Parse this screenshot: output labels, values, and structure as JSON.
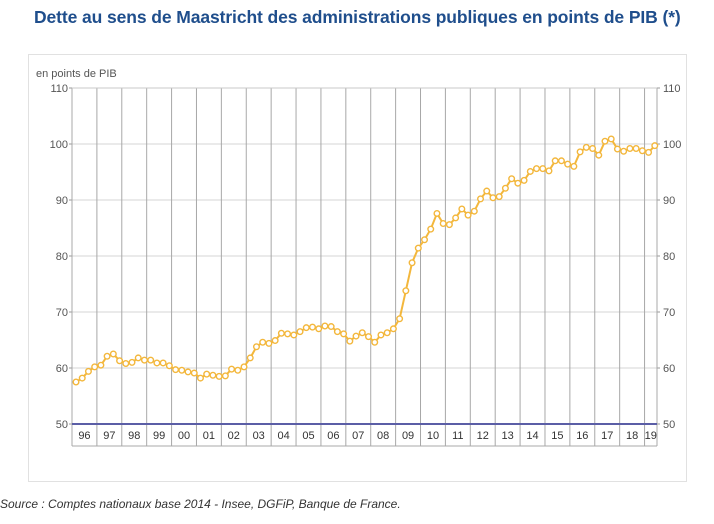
{
  "title": "Dette au sens de Maastricht des administrations publiques en points de PIB (*)",
  "source": "Source : Comptes nationaux base 2014 - Insee, DGFiP, Banque de France.",
  "colors": {
    "title": "#1f4e8c",
    "line": "#f3b73c",
    "baseline": "#5b5ea6",
    "grid": "#a8a8a8"
  },
  "chart_data": {
    "type": "line",
    "ylabel": "en points de PIB",
    "ylim": [
      50,
      110
    ],
    "yticks": [
      50,
      60,
      70,
      80,
      90,
      100,
      110
    ],
    "year_labels": [
      "96",
      "97",
      "98",
      "99",
      "00",
      "01",
      "02",
      "03",
      "04",
      "05",
      "06",
      "07",
      "08",
      "09",
      "10",
      "11",
      "12",
      "13",
      "14",
      "15",
      "16",
      "17",
      "18",
      "19"
    ],
    "x_start": "1996-Q1",
    "x_end": "2019-Q1",
    "x_frequency": "quarterly",
    "values": [
      57.5,
      58.2,
      59.4,
      60.2,
      60.5,
      62.1,
      62.5,
      61.3,
      60.8,
      61.0,
      61.8,
      61.4,
      61.4,
      60.9,
      60.9,
      60.4,
      59.7,
      59.6,
      59.3,
      59.1,
      58.2,
      58.9,
      58.7,
      58.5,
      58.6,
      59.8,
      59.6,
      60.2,
      61.8,
      63.8,
      64.6,
      64.4,
      64.9,
      66.2,
      66.1,
      65.9,
      66.5,
      67.2,
      67.3,
      67.0,
      67.5,
      67.4,
      66.5,
      66.1,
      64.8,
      65.7,
      66.3,
      65.6,
      64.6,
      65.9,
      66.3,
      67.0,
      68.8,
      73.8,
      78.8,
      81.4,
      82.9,
      84.8,
      87.6,
      85.8,
      85.6,
      86.8,
      88.4,
      87.3,
      88.0,
      90.2,
      91.6,
      90.4,
      90.6,
      92.1,
      93.8,
      93.0,
      93.5,
      95.1,
      95.6,
      95.6,
      95.2,
      97.0,
      97.0,
      96.4,
      96.0,
      98.6,
      99.4,
      99.2,
      98.0,
      100.5,
      100.9,
      99.1,
      98.7,
      99.2,
      99.2,
      98.8,
      98.5,
      99.7
    ]
  }
}
